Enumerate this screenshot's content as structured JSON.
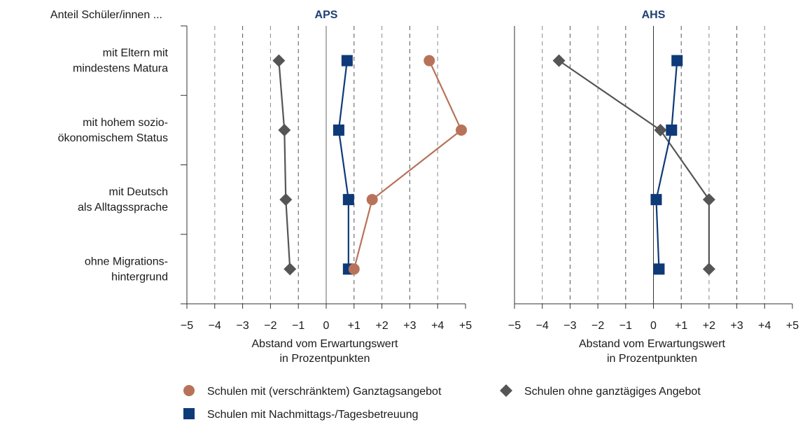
{
  "header_label": "Anteil Schüler/innen ...",
  "chart_data": {
    "type": "scatter",
    "categories": [
      [
        "mit Eltern mit",
        "mindestens Matura"
      ],
      [
        "mit hohem sozio-",
        "ökonomischem Status"
      ],
      [
        "mit Deutsch",
        "als Alltagssprache"
      ],
      [
        "ohne Migrations-",
        "hintergrund"
      ]
    ],
    "xlabel": [
      "Abstand vom Erwartungswert",
      "in Prozentpunkten"
    ],
    "xlim": [
      -5,
      5
    ],
    "x_ticks": [
      -5,
      -4,
      -3,
      -2,
      -1,
      0,
      1,
      2,
      3,
      4,
      5
    ],
    "x_tick_labels": [
      "−5",
      "−4",
      "−3",
      "−2",
      "−1",
      "0",
      "+1",
      "+2",
      "+3",
      "+4",
      "+5"
    ],
    "grid": "vertical dashed",
    "legend_position": "bottom",
    "legend": [
      {
        "key": "ganztag",
        "label": "Schulen mit (verschränktem) Ganztagsangebot"
      },
      {
        "key": "ohne",
        "label": "Schulen ohne ganztägiges Angebot"
      },
      {
        "key": "nachmittag",
        "label": "Schulen mit Nachmittags-/Tagesbetreuung"
      }
    ],
    "colors": {
      "ganztag": "#b8725a",
      "nachmittag": "#0e3a78",
      "ohne": "#555555"
    },
    "panels": [
      {
        "title": "APS",
        "series": [
          {
            "key": "ohne",
            "marker": "diamond",
            "values": [
              -1.7,
              -1.5,
              -1.45,
              -1.3
            ]
          },
          {
            "key": "nachmittag",
            "marker": "square",
            "values": [
              0.75,
              0.45,
              0.8,
              0.8
            ]
          },
          {
            "key": "ganztag",
            "marker": "circle",
            "values": [
              3.7,
              4.85,
              1.65,
              1.0
            ]
          }
        ]
      },
      {
        "title": "AHS",
        "series": [
          {
            "key": "ohne",
            "marker": "diamond",
            "values": [
              -3.4,
              0.25,
              2.0,
              2.0
            ]
          },
          {
            "key": "nachmittag",
            "marker": "square",
            "values": [
              0.85,
              0.65,
              0.1,
              0.2
            ]
          }
        ]
      }
    ]
  }
}
